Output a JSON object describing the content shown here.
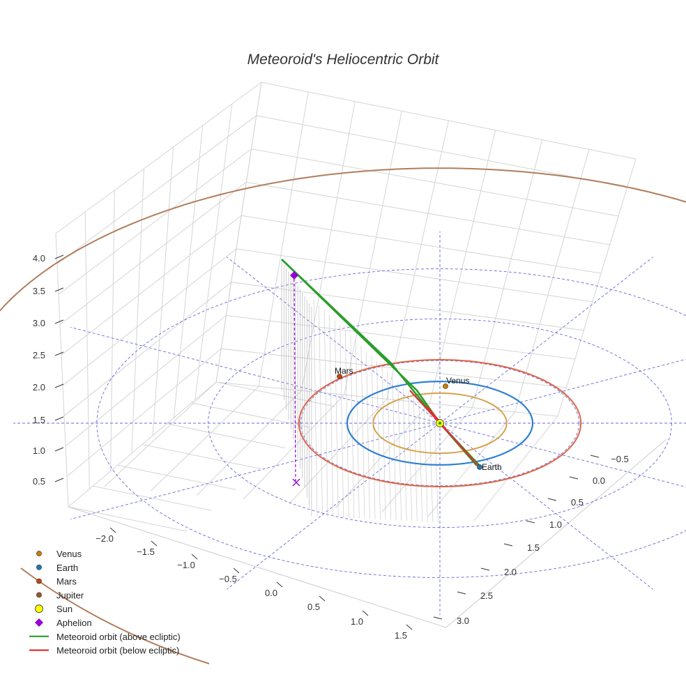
{
  "chart_data": {
    "type": "3d-line",
    "title": "Meteoroid's Heliocentric Orbit",
    "xlabel": "",
    "ylabel": "",
    "zlabel": "",
    "x_ticks": [
      "−2.0",
      "−1.5",
      "−1.0",
      "−0.5",
      "0.0",
      "0.5",
      "1.0",
      "1.5"
    ],
    "y_ticks": [
      "−0.5",
      "0.0",
      "0.5",
      "1.0",
      "1.5",
      "2.0",
      "2.5",
      "3.0"
    ],
    "z_ticks": [
      "0.5",
      "1.0",
      "1.5",
      "2.0",
      "2.5",
      "3.0",
      "3.5",
      "4.0"
    ],
    "ylim": [
      -0.5,
      3.0
    ],
    "zlim": [
      0.5,
      4.0
    ],
    "grid": true,
    "ecliptic_grid": {
      "color": "#6666dd",
      "style": "dashed"
    },
    "bodies": [
      {
        "name": "Venus",
        "label": "Venus",
        "color": "#d4a24c",
        "marker_color": "#cc7a00",
        "orbit_radius_au": 0.72
      },
      {
        "name": "Earth",
        "label": "Earth",
        "color": "#2f7fd0",
        "marker_color": "#1f77b4",
        "orbit_radius_au": 1.0
      },
      {
        "name": "Mars",
        "label": "Mars",
        "color": "#dd6644",
        "marker_color": "#c1440e",
        "orbit_radius_au": 1.52
      },
      {
        "name": "Jupiter",
        "label": "",
        "color": "#b07d5c",
        "marker_color": "#a0522d",
        "orbit_radius_au": 5.2
      }
    ],
    "sun": {
      "name": "Sun",
      "color": "#ffff00"
    },
    "aphelion": {
      "name": "Aphelion",
      "color": "#9400d3"
    },
    "meteoroid_orbit": {
      "above_name": "Meteoroid orbit (above ecliptic)",
      "below_name": "Meteoroid orbit (below ecliptic)",
      "above_color": "#2a9d2a",
      "below_color": "#e03030"
    },
    "legend": [
      {
        "label": "Venus",
        "kind": "dot",
        "color": "#cc7a00"
      },
      {
        "label": "Earth",
        "kind": "dot",
        "color": "#1f77b4"
      },
      {
        "label": "Mars",
        "kind": "dot",
        "color": "#c1440e"
      },
      {
        "label": "Jupiter",
        "kind": "dot",
        "color": "#a0522d"
      },
      {
        "label": "Sun",
        "kind": "sun",
        "color": "#ffff00"
      },
      {
        "label": "Aphelion",
        "kind": "diamond",
        "color": "#9400d3"
      },
      {
        "label": "Meteoroid orbit (above ecliptic)",
        "kind": "line",
        "color": "#2a9d2a"
      },
      {
        "label": "Meteoroid orbit (below ecliptic)",
        "kind": "line",
        "color": "#e03030"
      }
    ],
    "legend_position": "bottom-left"
  }
}
